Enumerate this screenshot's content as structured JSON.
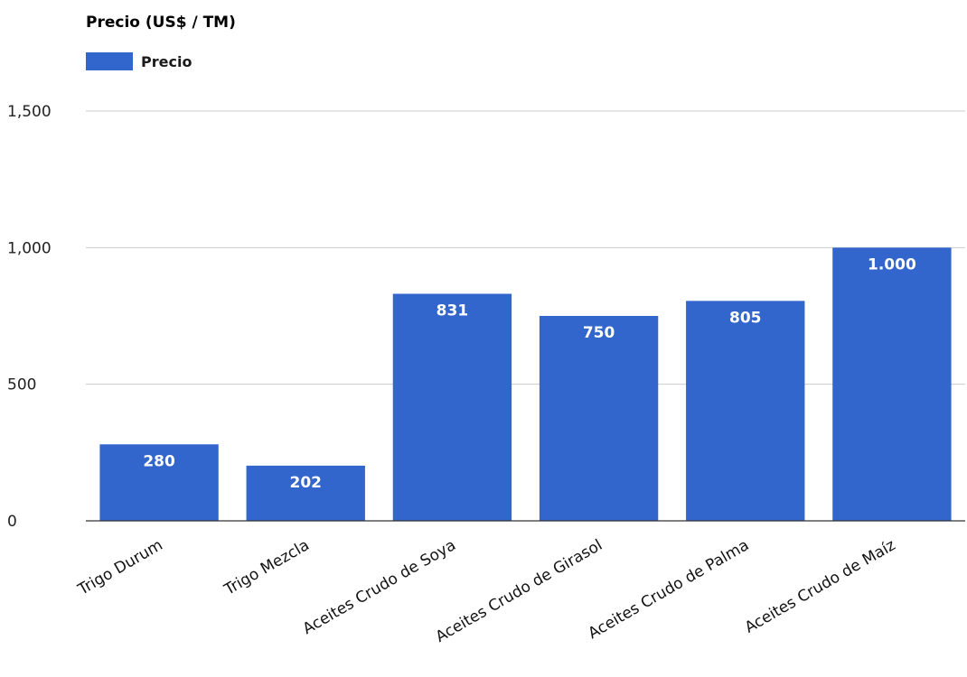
{
  "chart_data": {
    "type": "bar",
    "title": "Precio (US$ / TM)",
    "categories": [
      "Trigo Durum",
      "Trigo Mezcla",
      "Aceites Crudo de Soya",
      "Aceites Crudo de Girasol",
      "Aceites Crudo de Palma",
      "Aceites Crudo de Maíz"
    ],
    "series": [
      {
        "name": "Precio",
        "values": [
          280,
          202,
          831,
          750,
          805,
          1000
        ],
        "data_labels": [
          "280",
          "202",
          "831",
          "750",
          "805",
          "1.000"
        ],
        "color": "#3366cc"
      }
    ],
    "ylim": [
      0,
      1500
    ],
    "yticks": [
      0,
      500,
      1000,
      1500
    ],
    "ytick_labels": [
      "0",
      "500",
      "1,000",
      "1,500"
    ],
    "xlabel": "",
    "ylabel": "",
    "grid": true,
    "legend_position": "top-left"
  }
}
